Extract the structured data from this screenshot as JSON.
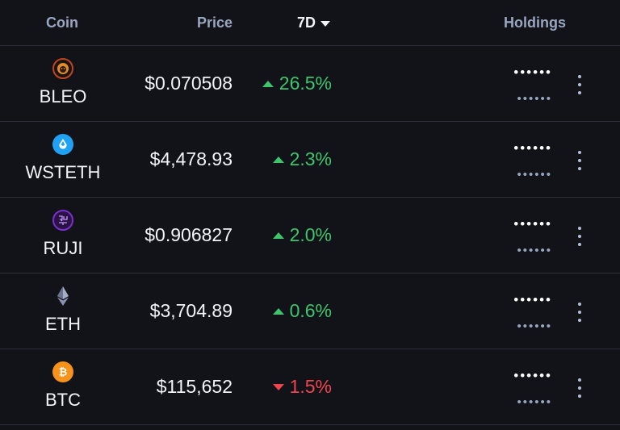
{
  "header": {
    "coin": "Coin",
    "price": "Price",
    "period": "7D",
    "holdings": "Holdings"
  },
  "rows": [
    {
      "symbol": "BLEO",
      "price": "$0.070508",
      "change": "26.5%",
      "direction": "up",
      "holdings_mask": "••••••",
      "holdings_value_mask": "••••••",
      "icon": "bleo-lion-icon",
      "icon_color": "#c2441f"
    },
    {
      "symbol": "WSTETH",
      "price": "$4,478.93",
      "change": "2.3%",
      "direction": "up",
      "holdings_mask": "••••••",
      "holdings_value_mask": "••••••",
      "icon": "wsteth-drop-icon",
      "icon_color": "#1fa2f3"
    },
    {
      "symbol": "RUJI",
      "price": "$0.906827",
      "change": "2.0%",
      "direction": "up",
      "holdings_mask": "••••••",
      "holdings_value_mask": "••••••",
      "icon": "ruji-icon",
      "icon_color": "#7b2fd0"
    },
    {
      "symbol": "ETH",
      "price": "$3,704.89",
      "change": "0.6%",
      "direction": "up",
      "holdings_mask": "••••••",
      "holdings_value_mask": "••••••",
      "icon": "ethereum-icon",
      "icon_color": "#8a92b2"
    },
    {
      "symbol": "BTC",
      "price": "$115,652",
      "change": "1.5%",
      "direction": "down",
      "holdings_mask": "••••••",
      "holdings_value_mask": "••••••",
      "icon": "bitcoin-icon",
      "icon_color": "#f7931a"
    }
  ],
  "colors": {
    "up": "#3ec46d",
    "down": "#f0444f",
    "background": "#121318"
  }
}
